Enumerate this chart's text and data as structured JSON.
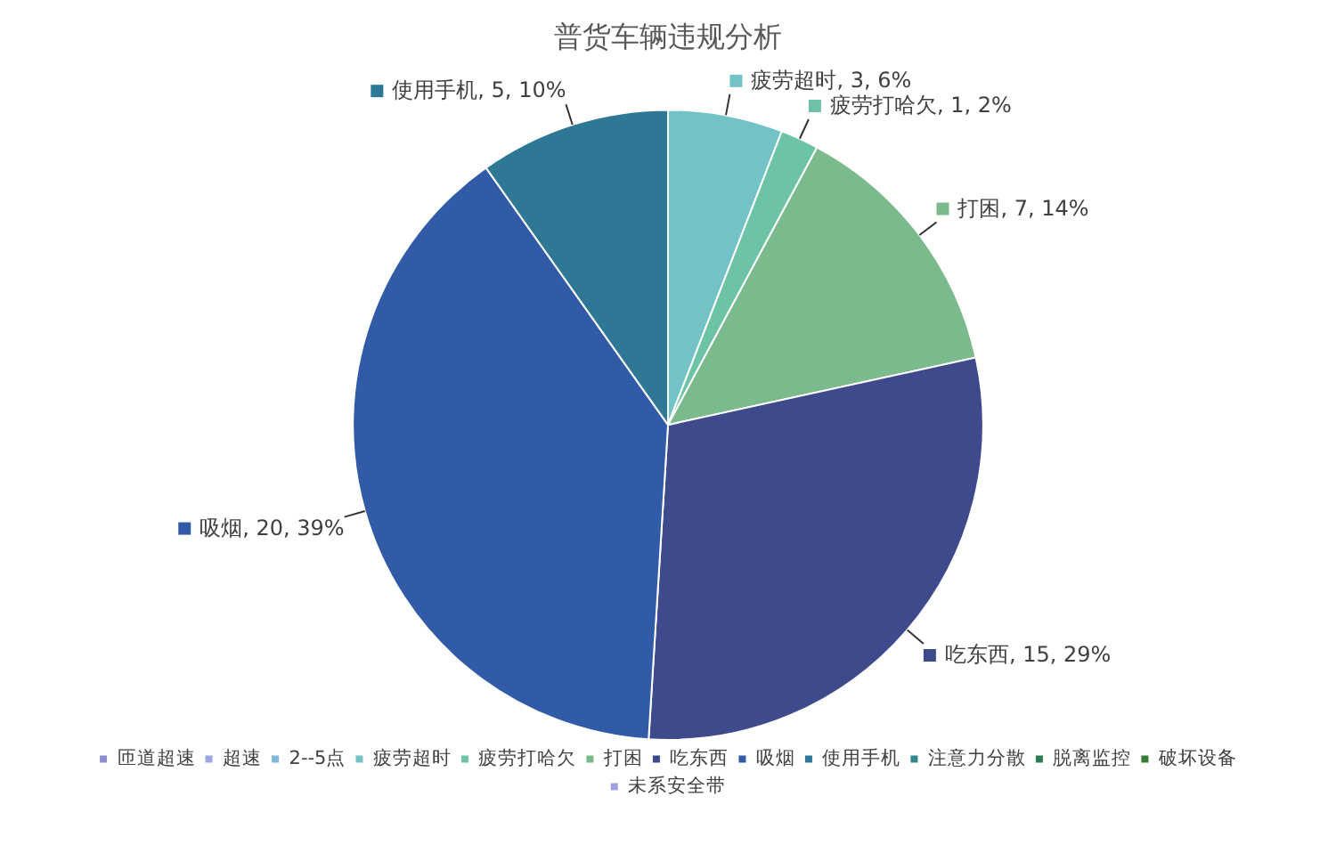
{
  "chart_data": {
    "type": "pie",
    "title": "普货车辆违规分析",
    "categories": [
      "匝道超速",
      "超速",
      "2--5点",
      "疲劳超时",
      "疲劳打哈欠",
      "打困",
      "吃东西",
      "吸烟",
      "使用手机",
      "注意力分散",
      "脱离监控",
      "破坏设备",
      "未系安全带"
    ],
    "values": [
      0,
      0,
      0,
      3,
      1,
      7,
      15,
      20,
      5,
      0,
      0,
      0,
      0
    ],
    "colors": [
      "#8a8fd0",
      "#9aa8e0",
      "#7fb8d8",
      "#72c2c6",
      "#6cc4a4",
      "#7aba8c",
      "#3e4a8c",
      "#315ba6",
      "#2e7896",
      "#2e8a8a",
      "#2e7a5a",
      "#3a7a3a",
      "#a0a0e0"
    ],
    "value_labels": [
      null,
      null,
      null,
      "疲劳超时, 3, 6%",
      "疲劳打哈欠, 1, 2%",
      "打困, 7, 14%",
      "吃东西, 15, 29%",
      "吸烟, 20, 39%",
      "使用手机, 5, 10%",
      null,
      null,
      null,
      null
    ],
    "legend": "bottom"
  }
}
